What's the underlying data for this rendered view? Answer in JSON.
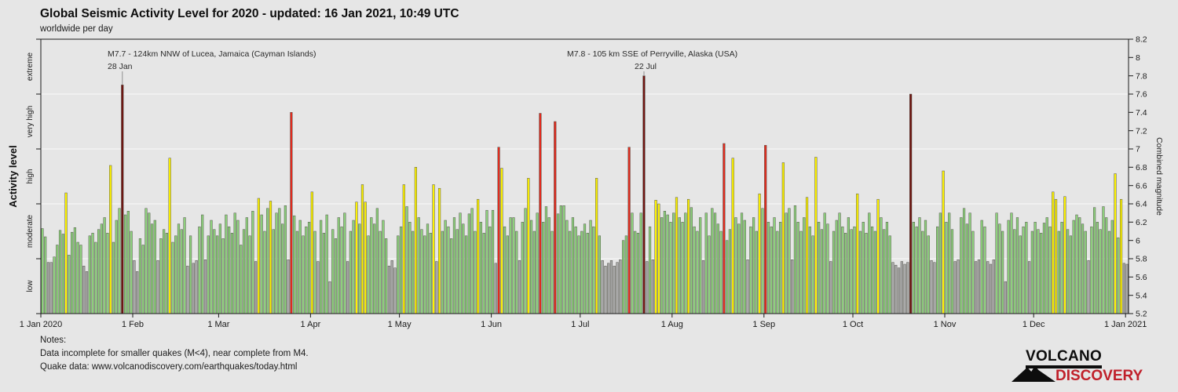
{
  "title": "Global Seismic Activity Level for 2020 - updated: 16 Jan 2021, 10:49 UTC",
  "subtitle": "worldwide per day",
  "annotations": [
    {
      "line1": "M7.7 - 124km NNW of Lucea, Jamaica (Cayman Islands)",
      "line2": "28 Jan",
      "day": 27,
      "magnitude": 7.7
    },
    {
      "line1": "M7.8 - 105 km SSE of Perryville, Alaska (USA)",
      "line2": "22 Jul",
      "day": 203,
      "magnitude": 7.8
    }
  ],
  "notes": {
    "heading": "Notes:",
    "line1": "Data incomplete for smaller quakes (M<4), near complete from M4.",
    "line2": "Quake data: www.volcanodiscovery.com/earthquakes/today.html"
  },
  "logo": {
    "line1": "VOLCANO",
    "line2": "DISCOVERY"
  },
  "chart_data": {
    "type": "bar",
    "title": "Global Seismic Activity Level for 2020",
    "xlabel": "",
    "ylabel_left": "Activity level",
    "ylabel_right": "Combined magnitude",
    "y_right_range": [
      5.2,
      8.2
    ],
    "y_right_ticks": [
      "8.2",
      "8",
      "7.8",
      "7.6",
      "7.4",
      "7.2",
      "7",
      "6.8",
      "6.6",
      "6.4",
      "6.2",
      "6",
      "5.8",
      "5.6",
      "5.4",
      "5.2"
    ],
    "grid": "horizontal-level-boundaries",
    "legend": "none",
    "start_date": "1 Jan 2020",
    "x_tick_labels": [
      "1 Jan 2020",
      "1 Feb",
      "1 Mar",
      "1 Apr",
      "1 May",
      "1 Jun",
      "1 Jul",
      "1 Aug",
      "1 Sep",
      "1 Oct",
      "1 Nov",
      "1 Dec",
      "1 Jan 2021"
    ],
    "x_tick_offsets": [
      0,
      31,
      60,
      91,
      121,
      152,
      182,
      213,
      244,
      274,
      305,
      335,
      366
    ],
    "levels": [
      {
        "label": "low",
        "max": 5.8,
        "color": "#a9a9a9"
      },
      {
        "label": "moderate",
        "max": 6.4,
        "color": "#8dd07c"
      },
      {
        "label": "high",
        "max": 7.0,
        "color": "#fdf200"
      },
      {
        "label": "very high",
        "max": 7.6,
        "color": "#e02b1e"
      },
      {
        "label": "extreme",
        "max": 8.2,
        "color": "#701410"
      }
    ],
    "values": [
      6.13,
      6.04,
      5.76,
      5.76,
      5.82,
      5.95,
      6.11,
      6.07,
      6.52,
      5.84,
      6.09,
      6.14,
      5.98,
      5.95,
      5.72,
      5.66,
      6.05,
      6.08,
      5.98,
      6.12,
      6.18,
      6.25,
      6.08,
      6.82,
      5.98,
      6.22,
      6.35,
      7.7,
      6.28,
      6.32,
      6.1,
      5.78,
      5.66,
      6.02,
      5.95,
      6.35,
      6.3,
      6.18,
      6.22,
      5.78,
      6.02,
      6.12,
      6.08,
      6.9,
      5.98,
      6.05,
      6.18,
      6.12,
      6.25,
      5.72,
      6.05,
      5.75,
      5.78,
      6.15,
      6.28,
      5.79,
      6.05,
      6.22,
      6.12,
      6.05,
      6.18,
      6.02,
      6.28,
      6.15,
      6.08,
      6.3,
      6.22,
      5.95,
      6.12,
      6.25,
      6.05,
      6.32,
      5.77,
      6.46,
      6.28,
      6.1,
      6.35,
      6.43,
      6.12,
      6.3,
      6.35,
      6.18,
      6.38,
      5.79,
      7.4,
      6.27,
      6.1,
      6.22,
      6.05,
      6.15,
      6.2,
      6.53,
      6.1,
      5.77,
      6.22,
      6.08,
      6.28,
      5.55,
      6.12,
      6.02,
      6.25,
      6.15,
      6.3,
      5.77,
      6.1,
      6.22,
      6.42,
      6.18,
      6.61,
      6.42,
      6.05,
      6.25,
      6.18,
      6.35,
      6.1,
      6.22,
      6.02,
      5.72,
      5.78,
      5.7,
      6.05,
      6.15,
      6.61,
      6.37,
      6.2,
      6.1,
      6.8,
      6.25,
      6.12,
      6.05,
      6.18,
      6.08,
      6.61,
      5.77,
      6.57,
      6.1,
      6.22,
      6.15,
      6.02,
      6.25,
      6.12,
      6.3,
      6.18,
      6.05,
      6.29,
      6.35,
      6.1,
      6.45,
      6.2,
      6.08,
      6.33,
      6.15,
      6.33,
      5.75,
      7.02,
      6.79,
      6.15,
      6.05,
      6.25,
      6.25,
      6.1,
      5.78,
      6.2,
      6.35,
      6.68,
      6.22,
      6.1,
      6.3,
      7.39,
      6.2,
      6.37,
      6.25,
      6.1,
      7.3,
      6.29,
      6.38,
      6.38,
      6.22,
      6.1,
      6.25,
      6.15,
      6.05,
      6.1,
      6.18,
      6.08,
      6.22,
      6.15,
      6.68,
      6.05,
      5.78,
      5.72,
      5.75,
      5.78,
      5.72,
      5.76,
      5.79,
      6.0,
      6.05,
      7.02,
      6.3,
      6.1,
      6.08,
      6.3,
      7.8,
      5.77,
      6.15,
      5.79,
      6.44,
      6.4,
      6.25,
      6.32,
      6.28,
      6.2,
      6.3,
      6.47,
      6.25,
      6.2,
      6.3,
      6.45,
      6.36,
      6.15,
      6.1,
      6.25,
      5.78,
      6.3,
      6.05,
      6.35,
      6.3,
      6.18,
      6.1,
      7.06,
      6.0,
      6.12,
      6.9,
      6.25,
      6.18,
      6.3,
      6.22,
      5.79,
      6.15,
      6.25,
      6.1,
      6.51,
      6.35,
      7.04,
      6.2,
      6.15,
      6.25,
      6.1,
      6.2,
      6.85,
      6.3,
      6.35,
      5.79,
      6.38,
      6.2,
      6.1,
      6.25,
      6.47,
      6.15,
      6.05,
      6.91,
      6.2,
      6.12,
      6.3,
      6.18,
      5.77,
      6.1,
      6.22,
      6.3,
      6.15,
      6.08,
      6.25,
      6.12,
      6.15,
      6.51,
      6.1,
      6.2,
      6.08,
      6.3,
      6.15,
      6.1,
      6.45,
      6.25,
      6.12,
      6.2,
      6.05,
      5.76,
      5.73,
      5.7,
      5.77,
      5.74,
      5.76,
      7.6,
      6.2,
      6.15,
      6.25,
      6.1,
      6.22,
      6.05,
      5.78,
      5.76,
      6.15,
      6.3,
      6.76,
      6.2,
      6.3,
      6.12,
      5.77,
      5.79,
      6.25,
      6.35,
      6.18,
      6.3,
      6.1,
      5.77,
      5.79,
      6.22,
      6.15,
      5.77,
      5.74,
      5.79,
      6.3,
      6.18,
      6.1,
      5.55,
      6.22,
      6.3,
      6.12,
      6.25,
      6.05,
      6.15,
      6.2,
      5.77,
      6.1,
      6.2,
      6.12,
      6.08,
      6.19,
      6.25,
      6.15,
      6.53,
      6.45,
      6.1,
      6.2,
      6.48,
      6.12,
      6.05,
      6.22,
      6.28,
      6.25,
      6.18,
      6.1,
      5.78,
      6.15,
      6.36,
      6.2,
      6.12,
      6.37,
      6.25,
      6.1,
      6.22,
      6.73,
      6.03,
      6.45,
      5.75,
      5.74
    ]
  }
}
